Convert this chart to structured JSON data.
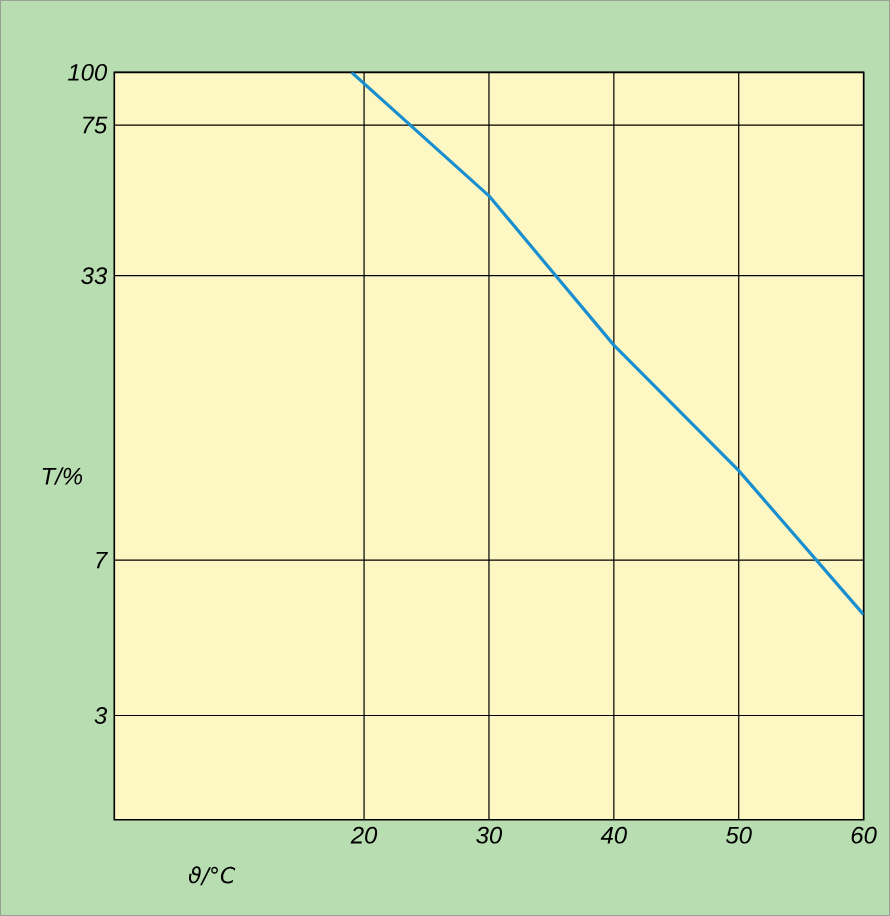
{
  "chart_data": {
    "type": "line",
    "xlabel": "ϑ/°C",
    "ylabel": "T/%",
    "x": [
      19,
      30,
      40,
      50,
      60
    ],
    "series": [
      {
        "color": "#1a8fd0",
        "values": [
          100,
          51,
          22.6,
          11.4,
          5.2
        ]
      }
    ],
    "xlim": [
      0,
      60
    ],
    "xticks": [
      20,
      30,
      40,
      50,
      60
    ],
    "ylim": [
      1.7,
      100
    ],
    "yticks": [
      3,
      7,
      33,
      75,
      100
    ],
    "log": "y",
    "grid": true,
    "marker": "none",
    "line_style": "solid"
  }
}
